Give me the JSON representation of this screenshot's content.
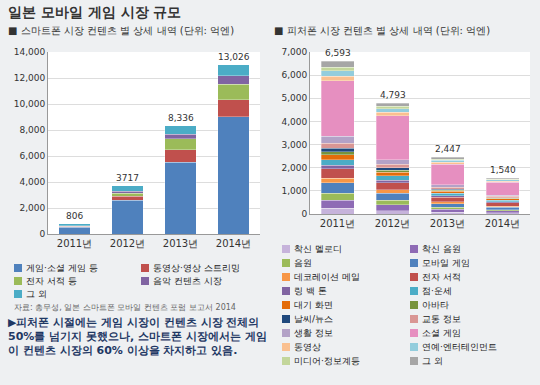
{
  "title": "일본 모바일 게임 시장 규모",
  "source": "자료: 총무성, 일본 스마트폰 모바일 컨텐츠 포럼 보고서 2014",
  "note": "▶피처폰 시절에는 게임 시장이 컨텐츠 시장 전체의 50%를 넘기지 못했으나, 스마트폰 시장에서는 게임이 컨텐츠 시장의 60% 이상을 차지하고 있음.",
  "chart_data": [
    {
      "type": "bar",
      "title": "■ 스마트폰 시장 컨텐츠 별 상세 내역 (단위: 억엔)",
      "stacked": true,
      "grid": true,
      "legend": "bottom",
      "categories": [
        "2011년",
        "2012년",
        "2013년",
        "2014년"
      ],
      "series": [
        {
          "name": "게임·소셜 게임 등",
          "color": "#4f81bd",
          "values": [
            538,
            2607,
            5507,
            9008
          ]
        },
        {
          "name": "동영상·영상 스트리밍",
          "color": "#c0504d",
          "values": [
            43,
            298,
            960,
            1318
          ]
        },
        {
          "name": "전자 서적 등",
          "color": "#9bbb59",
          "values": [
            30,
            220,
            854,
            1205
          ]
        },
        {
          "name": "음악 컨텐츠 시장",
          "color": "#8064a2",
          "values": [
            14,
            163,
            358,
            652
          ]
        },
        {
          "name": "그 외",
          "color": "#4bacc6",
          "values": [
            181,
            429,
            657,
            843
          ]
        }
      ],
      "totals": [
        806,
        3717,
        8336,
        13026
      ],
      "total_labels": [
        "806",
        "3717",
        "8,336",
        "13,026"
      ],
      "ylim": [
        0,
        14000
      ],
      "yticks": [
        0,
        {
          "value": 2000,
          "label": "2,000"
        },
        {
          "value": 4000,
          "label": "4,000"
        },
        {
          "value": 6000,
          "label": "6,000"
        },
        {
          "value": 8000,
          "label": "8,000"
        },
        {
          "value": 10000,
          "label": "10,000"
        },
        {
          "value": 12000,
          "label": "12,000"
        },
        {
          "value": 14000,
          "label": "14,000"
        }
      ]
    },
    {
      "type": "bar",
      "title": "■ 피처폰 시장 컨텐츠 별 상세 내역 (단위: 억엔)",
      "stacked": true,
      "grid": true,
      "legend": "bottom",
      "categories": [
        "2011년",
        "2012년",
        "2013년",
        "2014년"
      ],
      "series": [
        {
          "name": "착신 멜로디",
          "color": "#c6b3db",
          "values": [
            250,
            150,
            80,
            50
          ]
        },
        {
          "name": "착신 음원",
          "color": "#8e6bb5",
          "values": [
            350,
            250,
            120,
            80
          ]
        },
        {
          "name": "음원",
          "color": "#9bbb59",
          "values": [
            300,
            200,
            100,
            60
          ]
        },
        {
          "name": "모바일 게임",
          "color": "#4f81bd",
          "values": [
            450,
            300,
            150,
            100
          ]
        },
        {
          "name": "데코레이션 메일",
          "color": "#f79646",
          "values": [
            200,
            150,
            80,
            50
          ]
        },
        {
          "name": "전자 서적",
          "color": "#c0504d",
          "values": [
            400,
            300,
            200,
            150
          ]
        },
        {
          "name": "링 백 톤",
          "color": "#8064a2",
          "values": [
            150,
            100,
            50,
            30
          ]
        },
        {
          "name": "점·운세",
          "color": "#4bacc6",
          "values": [
            250,
            200,
            120,
            80
          ]
        },
        {
          "name": "대기 화면",
          "color": "#e46c0a",
          "values": [
            200,
            150,
            80,
            50
          ]
        },
        {
          "name": "아바타",
          "color": "#77933c",
          "values": [
            150,
            100,
            50,
            30
          ]
        },
        {
          "name": "날씨/뉴스",
          "color": "#1f497d",
          "values": [
            150,
            100,
            50,
            30
          ]
        },
        {
          "name": "교통 정보",
          "color": "#d99694",
          "values": [
            200,
            150,
            80,
            50
          ]
        },
        {
          "name": "생활 정보",
          "color": "#b3a2c7",
          "values": [
            300,
            200,
            100,
            60
          ]
        },
        {
          "name": "소셜 게임",
          "color": "#e68fc0",
          "values": [
            2400,
            1900,
            900,
            550
          ]
        },
        {
          "name": "동영상",
          "color": "#fac090",
          "values": [
            200,
            150,
            80,
            50
          ]
        },
        {
          "name": "연예·엔터테인먼트",
          "color": "#93cddd",
          "values": [
            250,
            150,
            80,
            50
          ]
        },
        {
          "name": "미디어·정보계등",
          "color": "#c3d69b",
          "values": [
            150,
            100,
            50,
            30
          ]
        },
        {
          "name": "그 외",
          "color": "#a6a6a6",
          "values": [
            243,
            143,
            77,
            40
          ]
        }
      ],
      "totals": [
        6593,
        4793,
        2447,
        1540
      ],
      "total_labels": [
        "6,593",
        "4,793",
        "2,447",
        "1,540"
      ],
      "ylim": [
        0,
        7000
      ],
      "yticks": [
        0,
        {
          "value": 1000,
          "label": "1,000"
        },
        {
          "value": 2000,
          "label": "2,000"
        },
        {
          "value": 3000,
          "label": "3,000"
        },
        {
          "value": 4000,
          "label": "4,000"
        },
        {
          "value": 5000,
          "label": "5,000"
        },
        {
          "value": 6000,
          "label": "6,000"
        },
        {
          "value": 7000,
          "label": "7,000"
        }
      ]
    }
  ]
}
